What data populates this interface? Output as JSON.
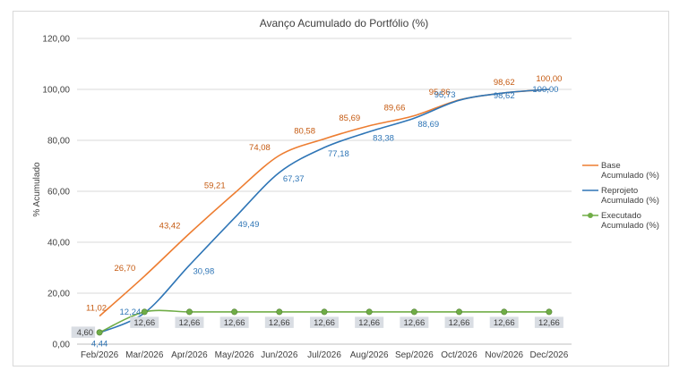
{
  "chart_data": {
    "type": "line",
    "title": "Avanço Acumulado do Portfólio (%)",
    "xlabel": "",
    "ylabel": "% Acumulado",
    "ylim": [
      0,
      120
    ],
    "yticks": [
      "0,00",
      "20,00",
      "40,00",
      "60,00",
      "80,00",
      "100,00",
      "120,00"
    ],
    "categories": [
      "Feb/2026",
      "Mar/2026",
      "Apr/2026",
      "May/2026",
      "Jun/2026",
      "Jul/2026",
      "Aug/2026",
      "Sep/2026",
      "Oct/2026",
      "Nov/2026",
      "Dec/2026"
    ],
    "grid": true,
    "legend": "right",
    "series": [
      {
        "name": "Base Acumulado (%)",
        "legend_lines": [
          "Base",
          "Acumulado (%)"
        ],
        "color": "#ED7D31",
        "label_color": "#C55A11",
        "values": [
          11.02,
          26.7,
          43.42,
          59.21,
          74.08,
          80.58,
          85.69,
          89.66,
          95.86,
          98.62,
          100.0
        ],
        "labels": [
          "11,02",
          "26,70",
          "43,42",
          "59,21",
          "74,08",
          "80,58",
          "85,69",
          "89,66",
          "95,86",
          "98,62",
          "100,00"
        ]
      },
      {
        "name": "Reprojeto Acumulado (%)",
        "legend_lines": [
          "Reprojeto",
          "Acumulado (%)"
        ],
        "color": "#2E75B6",
        "label_color": "#2E75B6",
        "values": [
          4.44,
          12.24,
          30.98,
          49.49,
          67.37,
          77.18,
          83.38,
          88.69,
          95.73,
          98.62,
          100.0
        ],
        "labels": [
          "4,44",
          "12,24",
          "30,98",
          "49,49",
          "67,37",
          "77,18",
          "83,38",
          "88,69",
          "95,73",
          "98,62",
          "100,00"
        ]
      },
      {
        "name": "Executado Acumulado (%)",
        "legend_lines": [
          "Executado",
          "Acumulado (%)"
        ],
        "color": "#70AD47",
        "label_color": "#404040",
        "values": [
          4.6,
          12.66,
          12.66,
          12.66,
          12.66,
          12.66,
          12.66,
          12.66,
          12.66,
          12.66,
          12.66
        ],
        "labels": [
          "4,60",
          "12,66",
          "12,66",
          "12,66",
          "12,66",
          "12,66",
          "12,66",
          "12,66",
          "12,66",
          "12,66",
          "12,66"
        ]
      }
    ]
  }
}
